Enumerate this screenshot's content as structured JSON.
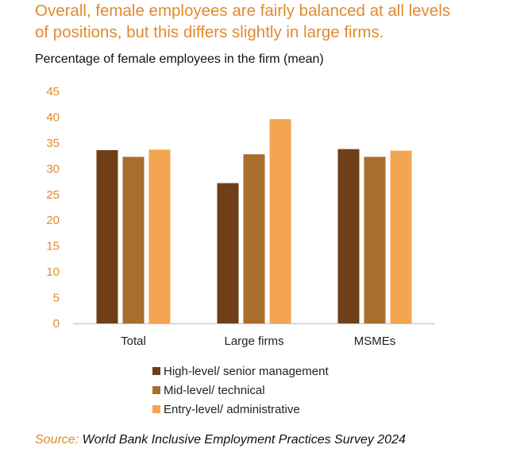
{
  "headline": {
    "line1": "Overall, female employees are fairly balanced at all levels",
    "line2": "of positions, but this differs slightly in large firms."
  },
  "chart_data": {
    "type": "bar",
    "title": "Percentage of female employees in the firm (mean)",
    "categories": [
      "Total",
      "Large firms",
      "MSMEs"
    ],
    "series": [
      {
        "name": "High-level/ senior management",
        "color": "#6e3f18",
        "values": [
          33.6,
          27.2,
          33.8
        ]
      },
      {
        "name": "Mid-level/ technical",
        "color": "#a96d2d",
        "values": [
          32.3,
          32.8,
          32.3
        ]
      },
      {
        "name": "Entry-level/ administrative",
        "color": "#f4a552",
        "values": [
          33.7,
          39.6,
          33.5
        ]
      }
    ],
    "ylim": [
      0,
      45
    ],
    "yticks": [
      "0",
      "5",
      "10",
      "15",
      "20",
      "25",
      "30",
      "35",
      "40",
      "45"
    ],
    "grid": false,
    "legend_position": "bottom"
  },
  "source": {
    "label": "Source:",
    "text": "World Bank Inclusive Employment Practices Survey 2024"
  },
  "colors": {
    "accent": "#e28a2e",
    "axis": "#bfbfbf",
    "tick_text": "#e28a2e"
  }
}
